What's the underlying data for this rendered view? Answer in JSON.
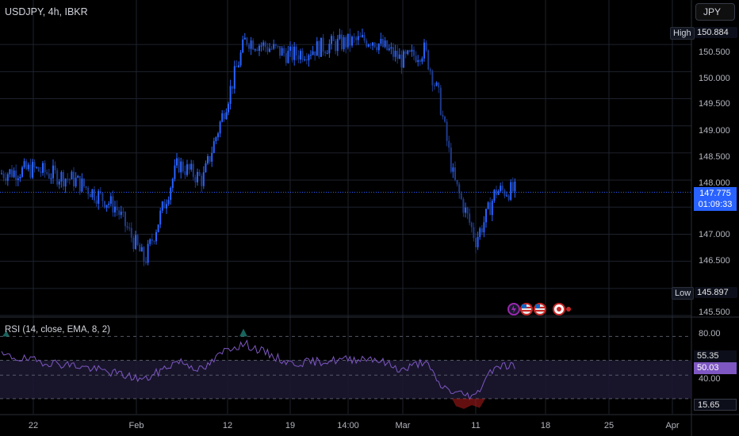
{
  "symbol": {
    "title": "USDJPY, 4h, IBKR"
  },
  "currency_button": {
    "label": "JPY"
  },
  "price_axis": {
    "ticks": [
      "150.500",
      "150.000",
      "149.500",
      "149.000",
      "148.500",
      "148.000",
      "147.000",
      "146.500",
      "145.500"
    ],
    "high_label": "High",
    "high_value": "150.884",
    "low_label": "Low",
    "low_value": "145.897",
    "last_price": "147.775",
    "countdown": "01:09:33"
  },
  "rsi": {
    "legend": "RSI (14, close, EMA, 8, 2)",
    "ticks": [
      "80.00",
      "40.00"
    ],
    "upper_band_value": "55.35",
    "current_value": "50.03",
    "lower_band_value": "15.65"
  },
  "time_axis": {
    "labels": [
      "22",
      "Feb",
      "12",
      "19",
      "14:00",
      "Mar",
      "11",
      "18",
      "25",
      "Apr"
    ]
  },
  "colors": {
    "candle_up": "#2962ff",
    "candle_down": "#1e3a8a",
    "rsi_line": "#7e57c2",
    "rsi_band": "#1b1730",
    "grid": "#1e222d",
    "axis_text": "#b2b5be",
    "accent": "#2962ff"
  },
  "events": [
    {
      "name": "flash-event-icon"
    },
    {
      "name": "us-flag-event-icon"
    },
    {
      "name": "us-flag-event-icon"
    },
    {
      "name": "japan-flag-event-icon"
    }
  ],
  "chart_data": {
    "type": "candlestick",
    "symbol": "USDJPY",
    "interval": "4h",
    "price_range": [
      145.5,
      151.0
    ],
    "high": 150.884,
    "low": 145.897,
    "last": 147.775,
    "close_path": [
      {
        "date": "Jan 18",
        "close": 148.1
      },
      {
        "date": "Jan 22",
        "close": 148.2
      },
      {
        "date": "Jan 26",
        "close": 148.0
      },
      {
        "date": "Jan 30",
        "close": 147.5
      },
      {
        "date": "Feb 2",
        "close": 146.5
      },
      {
        "date": "Feb 6",
        "close": 148.3
      },
      {
        "date": "Feb 9",
        "close": 148.0
      },
      {
        "date": "Feb 12",
        "close": 149.5
      },
      {
        "date": "Feb 14",
        "close": 150.6
      },
      {
        "date": "Feb 19",
        "close": 150.3
      },
      {
        "date": "Feb 23",
        "close": 150.5
      },
      {
        "date": "Feb 27",
        "close": 150.6
      },
      {
        "date": "Mar 1",
        "close": 150.2
      },
      {
        "date": "Mar 4",
        "close": 150.4
      },
      {
        "date": "Mar 6",
        "close": 149.5
      },
      {
        "date": "Mar 8",
        "close": 148.0
      },
      {
        "date": "Mar 11",
        "close": 146.9
      },
      {
        "date": "Mar 12",
        "close": 147.3
      },
      {
        "date": "Mar 13",
        "close": 147.8
      }
    ],
    "rsi_series": {
      "name": "RSI (14, close, EMA, 8, 2)",
      "y_range": [
        0,
        100
      ],
      "bands": [
        80,
        55.35,
        40,
        15.65
      ],
      "last": 50.03,
      "points": [
        {
          "date": "Jan 18",
          "value": 62
        },
        {
          "date": "Jan 22",
          "value": 55
        },
        {
          "date": "Jan 26",
          "value": 50
        },
        {
          "date": "Jan 30",
          "value": 42
        },
        {
          "date": "Feb 2",
          "value": 35
        },
        {
          "date": "Feb 6",
          "value": 55
        },
        {
          "date": "Feb 9",
          "value": 45
        },
        {
          "date": "Feb 12",
          "value": 68
        },
        {
          "date": "Feb 14",
          "value": 72
        },
        {
          "date": "Feb 19",
          "value": 52
        },
        {
          "date": "Feb 23",
          "value": 55
        },
        {
          "date": "Feb 27",
          "value": 58
        },
        {
          "date": "Mar 1",
          "value": 45
        },
        {
          "date": "Mar 4",
          "value": 55
        },
        {
          "date": "Mar 6",
          "value": 30
        },
        {
          "date": "Mar 8",
          "value": 22
        },
        {
          "date": "Mar 11",
          "value": 18
        },
        {
          "date": "Mar 12",
          "value": 38
        },
        {
          "date": "Mar 13",
          "value": 50
        }
      ]
    }
  }
}
